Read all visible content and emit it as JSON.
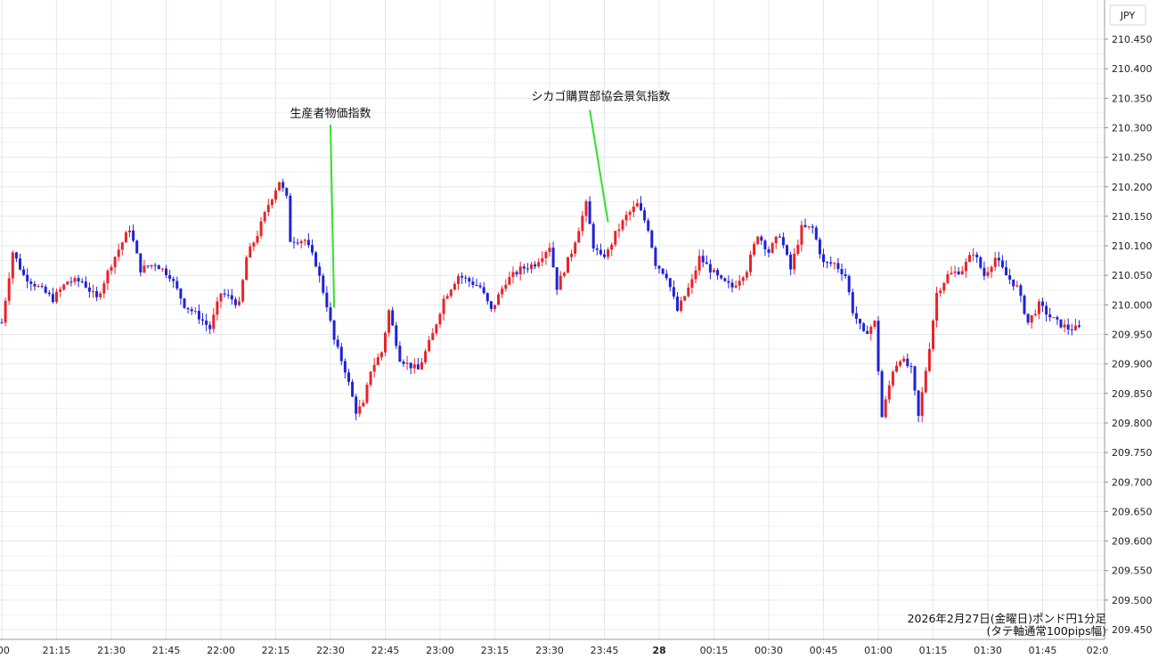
{
  "chart_data": {
    "type": "candlestick",
    "currency_label": "JPY",
    "caption_line1": "2026年2月27日(金曜日)ポンド円1分足",
    "caption_line2": "(タテ軸通常100pips幅)",
    "ylim": [
      209.45,
      210.475
    ],
    "y_ticks": [
      "210.450",
      "210.400",
      "210.350",
      "210.300",
      "210.250",
      "210.200",
      "210.150",
      "210.100",
      "210.050",
      "210.000",
      "209.950",
      "209.900",
      "209.850",
      "209.800",
      "209.750",
      "209.700",
      "209.650",
      "209.600",
      "209.550",
      "209.500",
      "209.450"
    ],
    "x_range_minutes": [
      0,
      182
    ],
    "x_ticks": [
      {
        "label": ":00",
        "minute": 0
      },
      {
        "label": "21:15",
        "minute": 15
      },
      {
        "label": "21:30",
        "minute": 30
      },
      {
        "label": "21:45",
        "minute": 45
      },
      {
        "label": "22:00",
        "minute": 60
      },
      {
        "label": "22:15",
        "minute": 75
      },
      {
        "label": "22:30",
        "minute": 90
      },
      {
        "label": "22:45",
        "minute": 105
      },
      {
        "label": "23:00",
        "minute": 120
      },
      {
        "label": "23:15",
        "minute": 135
      },
      {
        "label": "23:30",
        "minute": 150
      },
      {
        "label": "23:45",
        "minute": 165
      },
      {
        "label": "28",
        "minute": 180,
        "bold": true
      },
      {
        "label": "00:15",
        "minute": 195
      },
      {
        "label": "00:30",
        "minute": 210
      },
      {
        "label": "00:45",
        "minute": 225
      },
      {
        "label": "01:00",
        "minute": 240
      },
      {
        "label": "01:15",
        "minute": 255
      },
      {
        "label": "01:30",
        "minute": 270
      },
      {
        "label": "01:45",
        "minute": 285
      },
      {
        "label": "02:0",
        "minute": 300
      }
    ],
    "annotations": [
      {
        "label": "生産者物価指数",
        "label_minute": 90,
        "label_price": 210.318,
        "line_from_minute": 90,
        "line_from_price": 210.305,
        "line_to_minute": 91,
        "line_to_price": 209.995
      },
      {
        "label": "シカゴ購買部協会景気指数",
        "label_minute": 164,
        "label_price": 210.347,
        "line_from_minute": 161,
        "line_from_price": 210.33,
        "line_to_minute": 166,
        "line_to_price": 210.14
      }
    ],
    "up_color": "#e8232a",
    "down_color": "#1e22d6",
    "annotation_line_color": "#33e02a",
    "anchors": [
      [
        0,
        209.97
      ],
      [
        3,
        210.09
      ],
      [
        6,
        210.05
      ],
      [
        10,
        210.03
      ],
      [
        14,
        210.01
      ],
      [
        18,
        210.04
      ],
      [
        22,
        210.04
      ],
      [
        26,
        210.01
      ],
      [
        30,
        210.07
      ],
      [
        35,
        210.13
      ],
      [
        38,
        210.06
      ],
      [
        42,
        210.07
      ],
      [
        46,
        210.05
      ],
      [
        50,
        210.0
      ],
      [
        54,
        209.98
      ],
      [
        57,
        209.96
      ],
      [
        60,
        210.02
      ],
      [
        63,
        210.01
      ],
      [
        65,
        210.0
      ],
      [
        67,
        210.08
      ],
      [
        70,
        210.12
      ],
      [
        73,
        210.17
      ],
      [
        76,
        210.21
      ],
      [
        78,
        210.18
      ],
      [
        79,
        210.11
      ],
      [
        83,
        210.11
      ],
      [
        86,
        210.07
      ],
      [
        89,
        210.0
      ],
      [
        91,
        209.94
      ],
      [
        94,
        209.89
      ],
      [
        97,
        209.82
      ],
      [
        99,
        209.83
      ],
      [
        101,
        209.89
      ],
      [
        104,
        209.92
      ],
      [
        106,
        209.99
      ],
      [
        109,
        209.91
      ],
      [
        111,
        209.9
      ],
      [
        114,
        209.89
      ],
      [
        118,
        209.95
      ],
      [
        121,
        210.01
      ],
      [
        125,
        210.05
      ],
      [
        128,
        210.04
      ],
      [
        131,
        210.03
      ],
      [
        134,
        209.99
      ],
      [
        138,
        210.04
      ],
      [
        142,
        210.06
      ],
      [
        146,
        210.07
      ],
      [
        150,
        210.1
      ],
      [
        152,
        210.03
      ],
      [
        156,
        210.09
      ],
      [
        160,
        210.17
      ],
      [
        162,
        210.1
      ],
      [
        164,
        210.08
      ],
      [
        166,
        210.09
      ],
      [
        168,
        210.12
      ],
      [
        171,
        210.15
      ],
      [
        174,
        210.17
      ],
      [
        177,
        210.13
      ],
      [
        179,
        210.07
      ],
      [
        182,
        210.05
      ],
      [
        185,
        209.99
      ],
      [
        189,
        210.04
      ],
      [
        191,
        210.08
      ],
      [
        194,
        210.06
      ],
      [
        197,
        210.04
      ],
      [
        200,
        210.03
      ],
      [
        204,
        210.06
      ],
      [
        207,
        210.12
      ],
      [
        210,
        210.09
      ],
      [
        213,
        210.12
      ],
      [
        216,
        210.06
      ],
      [
        219,
        210.13
      ],
      [
        222,
        210.13
      ],
      [
        225,
        210.07
      ],
      [
        228,
        210.07
      ],
      [
        231,
        210.05
      ],
      [
        233,
        209.99
      ],
      [
        236,
        209.95
      ],
      [
        239,
        209.97
      ],
      [
        241,
        209.81
      ],
      [
        244,
        209.89
      ],
      [
        246,
        209.91
      ],
      [
        249,
        209.89
      ],
      [
        251,
        209.81
      ],
      [
        254,
        209.93
      ],
      [
        256,
        210.02
      ],
      [
        259,
        210.05
      ],
      [
        263,
        210.06
      ],
      [
        266,
        210.09
      ],
      [
        269,
        210.05
      ],
      [
        272,
        210.08
      ],
      [
        275,
        210.05
      ],
      [
        278,
        210.03
      ],
      [
        281,
        209.97
      ],
      [
        284,
        210.0
      ],
      [
        287,
        209.98
      ],
      [
        289,
        209.97
      ],
      [
        292,
        209.96
      ],
      [
        295,
        209.96
      ]
    ]
  }
}
